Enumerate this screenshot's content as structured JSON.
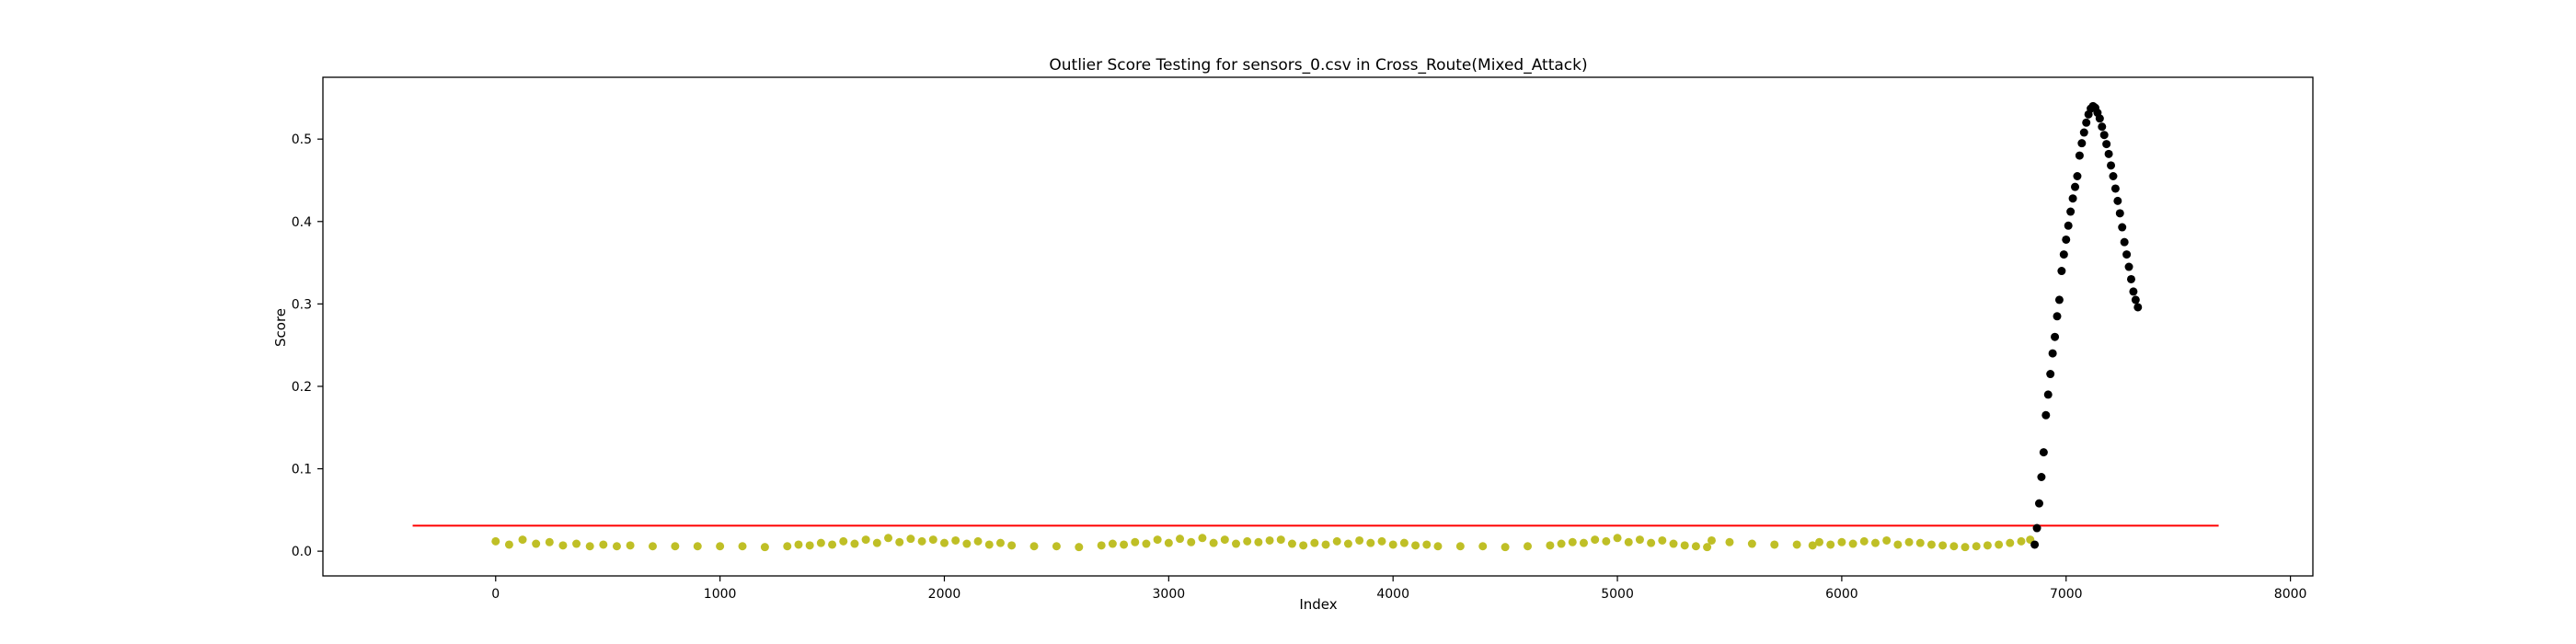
{
  "chart_data": {
    "type": "scatter",
    "title": "Outlier Score Testing for sensors_0.csv in Cross_Route(Mixed_Attack)",
    "xlabel": "Index",
    "ylabel": "Score",
    "xlim": [
      -770,
      8100
    ],
    "ylim": [
      -0.03,
      0.575
    ],
    "x_ticks": [
      0,
      1000,
      2000,
      3000,
      4000,
      5000,
      6000,
      7000,
      8000
    ],
    "x_tick_labels": [
      "0",
      "1000",
      "2000",
      "3000",
      "4000",
      "5000",
      "6000",
      "7000",
      "8000"
    ],
    "y_ticks": [
      0.0,
      0.1,
      0.2,
      0.3,
      0.4,
      0.5
    ],
    "y_tick_labels": [
      "0.0",
      "0.1",
      "0.2",
      "0.3",
      "0.4",
      "0.5"
    ],
    "grid": false,
    "legend": "none",
    "colors": {
      "normal": "#bfbf26",
      "anomaly": "#000000",
      "threshold": "#ff0000",
      "frame": "#000000"
    },
    "threshold": {
      "y": 0.031,
      "x_start": -370,
      "x_end": 7680
    },
    "normal_points": {
      "x": [
        0,
        60,
        120,
        180,
        240,
        300,
        360,
        420,
        480,
        540,
        600,
        700,
        800,
        900,
        1000,
        1100,
        1200,
        1300,
        1350,
        1400,
        1450,
        1500,
        1550,
        1600,
        1650,
        1700,
        1750,
        1800,
        1850,
        1900,
        1950,
        2000,
        2050,
        2100,
        2150,
        2200,
        2250,
        2300,
        2400,
        2500,
        2600,
        2700,
        2750,
        2800,
        2850,
        2900,
        2950,
        3000,
        3050,
        3100,
        3150,
        3200,
        3250,
        3300,
        3350,
        3400,
        3450,
        3500,
        3550,
        3600,
        3650,
        3700,
        3750,
        3800,
        3850,
        3900,
        3950,
        4000,
        4050,
        4100,
        4150,
        4200,
        4300,
        4400,
        4500,
        4600,
        4700,
        4750,
        4800,
        4850,
        4900,
        4950,
        5000,
        5050,
        5100,
        5150,
        5200,
        5250,
        5300,
        5350,
        5400,
        5420,
        5500,
        5600,
        5700,
        5800,
        5870,
        5900,
        5950,
        6000,
        6050,
        6100,
        6150,
        6200,
        6250,
        6300,
        6350,
        6400,
        6450,
        6500,
        6550,
        6600,
        6650,
        6700,
        6750,
        6800,
        6840
      ],
      "y": [
        0.012,
        0.008,
        0.014,
        0.009,
        0.011,
        0.007,
        0.009,
        0.006,
        0.008,
        0.006,
        0.007,
        0.006,
        0.006,
        0.006,
        0.006,
        0.006,
        0.005,
        0.006,
        0.008,
        0.007,
        0.01,
        0.008,
        0.012,
        0.009,
        0.014,
        0.01,
        0.016,
        0.011,
        0.015,
        0.012,
        0.014,
        0.01,
        0.013,
        0.009,
        0.012,
        0.008,
        0.01,
        0.007,
        0.006,
        0.006,
        0.005,
        0.007,
        0.009,
        0.008,
        0.011,
        0.009,
        0.014,
        0.01,
        0.015,
        0.011,
        0.016,
        0.01,
        0.014,
        0.009,
        0.012,
        0.011,
        0.013,
        0.014,
        0.009,
        0.007,
        0.01,
        0.008,
        0.012,
        0.009,
        0.013,
        0.01,
        0.012,
        0.008,
        0.01,
        0.007,
        0.008,
        0.006,
        0.006,
        0.006,
        0.005,
        0.006,
        0.007,
        0.009,
        0.011,
        0.01,
        0.014,
        0.012,
        0.016,
        0.011,
        0.014,
        0.01,
        0.013,
        0.009,
        0.007,
        0.006,
        0.005,
        0.013,
        0.011,
        0.009,
        0.008,
        0.008,
        0.007,
        0.011,
        0.008,
        0.011,
        0.009,
        0.012,
        0.01,
        0.013,
        0.008,
        0.011,
        0.01,
        0.008,
        0.007,
        0.006,
        0.005,
        0.006,
        0.007,
        0.008,
        0.01,
        0.012,
        0.014
      ]
    },
    "anomaly_points": {
      "x": [
        6860,
        6870,
        6880,
        6890,
        6900,
        6910,
        6920,
        6930,
        6940,
        6950,
        6960,
        6970,
        6980,
        6990,
        7000,
        7010,
        7020,
        7030,
        7040,
        7050,
        7060,
        7070,
        7080,
        7090,
        7100,
        7110,
        7120,
        7130,
        7140,
        7150,
        7160,
        7170,
        7180,
        7190,
        7200,
        7210,
        7220,
        7230,
        7240,
        7250,
        7260,
        7270,
        7280,
        7290,
        7300,
        7310,
        7320
      ],
      "y": [
        0.008,
        0.028,
        0.058,
        0.09,
        0.12,
        0.165,
        0.19,
        0.215,
        0.24,
        0.26,
        0.285,
        0.305,
        0.34,
        0.36,
        0.378,
        0.395,
        0.412,
        0.428,
        0.442,
        0.455,
        0.48,
        0.495,
        0.508,
        0.52,
        0.53,
        0.537,
        0.54,
        0.538,
        0.532,
        0.525,
        0.515,
        0.505,
        0.494,
        0.482,
        0.468,
        0.455,
        0.44,
        0.425,
        0.41,
        0.393,
        0.375,
        0.36,
        0.345,
        0.33,
        0.315,
        0.305,
        0.296
      ]
    }
  }
}
